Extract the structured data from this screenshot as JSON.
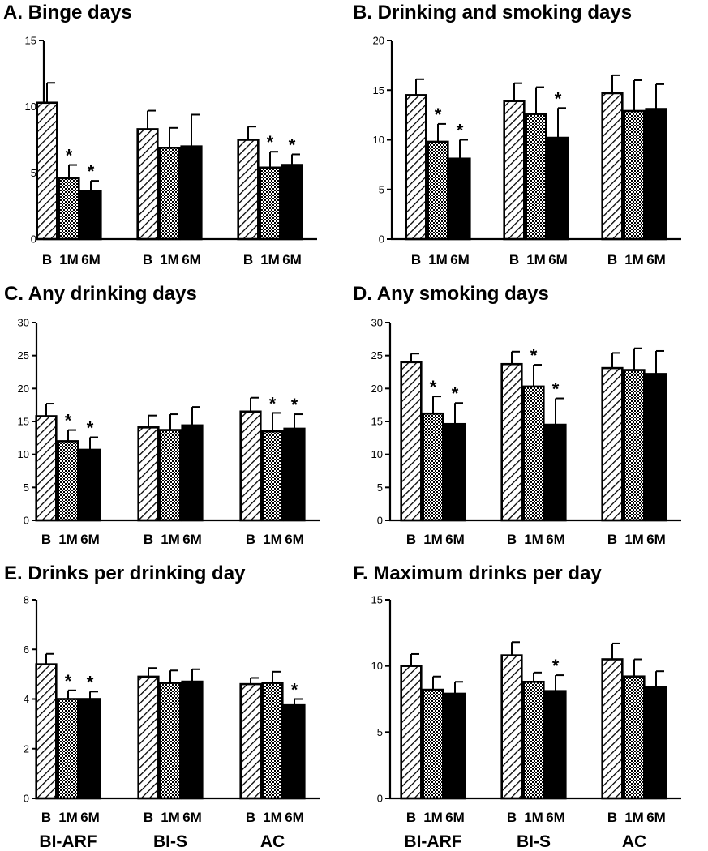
{
  "figure": {
    "group_labels": [
      "BI-ARF",
      "BI-S",
      "AC"
    ],
    "conditions": [
      "B",
      "1M",
      "6M"
    ]
  },
  "chart_data": [
    {
      "type": "bar",
      "title": "A. Binge days",
      "ylim": [
        0,
        15
      ],
      "yticks": [
        0,
        5,
        10,
        15
      ],
      "groups": [
        "BI-ARF",
        "BI-S",
        "AC"
      ],
      "series": [
        {
          "name": "B",
          "values": [
            10.3,
            8.3,
            7.5
          ],
          "errors": [
            1.5,
            1.4,
            1.0
          ]
        },
        {
          "name": "1M",
          "values": [
            4.6,
            6.9,
            5.4
          ],
          "errors": [
            1.0,
            1.5,
            1.2
          ]
        },
        {
          "name": "6M",
          "values": [
            3.6,
            7.0,
            5.6
          ],
          "errors": [
            0.8,
            2.4,
            0.8
          ]
        }
      ],
      "significant": [
        [
          false,
          true,
          true
        ],
        [
          false,
          false,
          false
        ],
        [
          false,
          true,
          true
        ]
      ]
    },
    {
      "type": "bar",
      "title": "B. Drinking and smoking days",
      "ylim": [
        0,
        20
      ],
      "yticks": [
        0,
        5,
        10,
        15,
        20
      ],
      "groups": [
        "BI-ARF",
        "BI-S",
        "AC"
      ],
      "series": [
        {
          "name": "B",
          "values": [
            14.5,
            13.9,
            14.7
          ],
          "errors": [
            1.6,
            1.8,
            1.8
          ]
        },
        {
          "name": "1M",
          "values": [
            9.8,
            12.6,
            12.9
          ],
          "errors": [
            1.8,
            2.7,
            3.1
          ]
        },
        {
          "name": "6M",
          "values": [
            8.1,
            10.2,
            13.1
          ],
          "errors": [
            1.9,
            3.0,
            2.5
          ]
        }
      ],
      "significant": [
        [
          false,
          true,
          true
        ],
        [
          false,
          false,
          true
        ],
        [
          false,
          false,
          false
        ]
      ]
    },
    {
      "type": "bar",
      "title": "C. Any drinking days",
      "ylim": [
        0,
        30
      ],
      "yticks": [
        0,
        5,
        10,
        15,
        20,
        25,
        30
      ],
      "groups": [
        "BI-ARF",
        "BI-S",
        "AC"
      ],
      "series": [
        {
          "name": "B",
          "values": [
            15.8,
            14.1,
            16.5
          ],
          "errors": [
            1.9,
            1.8,
            2.1
          ]
        },
        {
          "name": "1M",
          "values": [
            12.0,
            13.7,
            13.5
          ],
          "errors": [
            1.7,
            2.4,
            2.8
          ]
        },
        {
          "name": "6M",
          "values": [
            10.7,
            14.4,
            13.9
          ],
          "errors": [
            1.9,
            2.8,
            2.2
          ]
        }
      ],
      "significant": [
        [
          false,
          true,
          true
        ],
        [
          false,
          false,
          false
        ],
        [
          false,
          true,
          true
        ]
      ]
    },
    {
      "type": "bar",
      "title": "D. Any smoking days",
      "ylim": [
        0,
        30
      ],
      "yticks": [
        0,
        5,
        10,
        15,
        20,
        25,
        30
      ],
      "groups": [
        "BI-ARF",
        "BI-S",
        "AC"
      ],
      "series": [
        {
          "name": "B",
          "values": [
            24.0,
            23.7,
            23.1
          ],
          "errors": [
            1.3,
            1.9,
            2.3
          ]
        },
        {
          "name": "1M",
          "values": [
            16.2,
            20.3,
            22.8
          ],
          "errors": [
            2.6,
            3.3,
            3.3
          ]
        },
        {
          "name": "6M",
          "values": [
            14.6,
            14.5,
            22.2
          ],
          "errors": [
            3.2,
            4.0,
            3.5
          ]
        }
      ],
      "significant": [
        [
          false,
          true,
          true
        ],
        [
          false,
          true,
          true
        ],
        [
          false,
          false,
          false
        ]
      ]
    },
    {
      "type": "bar",
      "title": "E. Drinks per drinking day",
      "ylim": [
        0,
        8
      ],
      "yticks": [
        0,
        2,
        4,
        6,
        8
      ],
      "groups": [
        "BI-ARF",
        "BI-S",
        "AC"
      ],
      "series": [
        {
          "name": "B",
          "values": [
            5.4,
            4.9,
            4.6
          ],
          "errors": [
            0.42,
            0.35,
            0.25
          ]
        },
        {
          "name": "1M",
          "values": [
            4.0,
            4.65,
            4.65
          ],
          "errors": [
            0.35,
            0.5,
            0.45
          ]
        },
        {
          "name": "6M",
          "values": [
            4.0,
            4.7,
            3.75
          ],
          "errors": [
            0.3,
            0.5,
            0.25
          ]
        }
      ],
      "significant": [
        [
          false,
          true,
          true
        ],
        [
          false,
          false,
          false
        ],
        [
          false,
          false,
          true
        ]
      ]
    },
    {
      "type": "bar",
      "title": "F. Maximum drinks per day",
      "ylim": [
        0,
        15
      ],
      "yticks": [
        0,
        5,
        10,
        15
      ],
      "groups": [
        "BI-ARF",
        "BI-S",
        "AC"
      ],
      "series": [
        {
          "name": "B",
          "values": [
            10.0,
            10.8,
            10.5
          ],
          "errors": [
            0.9,
            1.0,
            1.2
          ]
        },
        {
          "name": "1M",
          "values": [
            8.2,
            8.8,
            9.2
          ],
          "errors": [
            1.0,
            0.7,
            1.3
          ]
        },
        {
          "name": "6M",
          "values": [
            7.9,
            8.1,
            8.4
          ],
          "errors": [
            0.9,
            1.2,
            1.2
          ]
        }
      ],
      "significant": [
        [
          false,
          false,
          false
        ],
        [
          false,
          false,
          true
        ],
        [
          false,
          false,
          false
        ]
      ]
    }
  ]
}
